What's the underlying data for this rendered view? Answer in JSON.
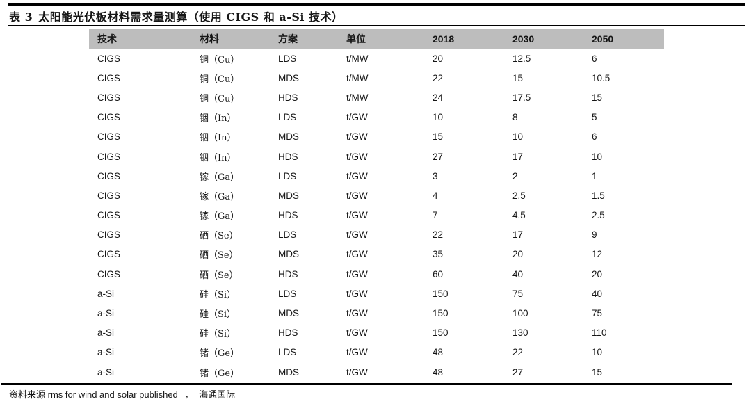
{
  "caption": {
    "label": "表 3",
    "text": "太阳能光伏板材料需求量测算（使用 CIGS 和 a-Si 技术）"
  },
  "table": {
    "columns": [
      "技术",
      "材料",
      "方案",
      "单位",
      "2018",
      "2030",
      "2050"
    ],
    "rows": [
      [
        "CIGS",
        "铜（Cu）",
        "LDS",
        "t/MW",
        "20",
        "12.5",
        "6"
      ],
      [
        "CIGS",
        "铜（Cu）",
        "MDS",
        "t/MW",
        "22",
        "15",
        "10.5"
      ],
      [
        "CIGS",
        "铜（Cu）",
        "HDS",
        "t/MW",
        "24",
        "17.5",
        "15"
      ],
      [
        "CIGS",
        "铟（In）",
        "LDS",
        "t/GW",
        "10",
        "8",
        "5"
      ],
      [
        "CIGS",
        "铟（In）",
        "MDS",
        "t/GW",
        "15",
        "10",
        "6"
      ],
      [
        "CIGS",
        "铟（In）",
        "HDS",
        "t/GW",
        "27",
        "17",
        "10"
      ],
      [
        "CIGS",
        "镓（Ga）",
        "LDS",
        "t/GW",
        "3",
        "2",
        "1"
      ],
      [
        "CIGS",
        "镓（Ga）",
        "MDS",
        "t/GW",
        "4",
        "2.5",
        "1.5"
      ],
      [
        "CIGS",
        "镓（Ga）",
        "HDS",
        "t/GW",
        "7",
        "4.5",
        "2.5"
      ],
      [
        "CIGS",
        "硒（Se）",
        "LDS",
        "t/GW",
        "22",
        "17",
        "9"
      ],
      [
        "CIGS",
        "硒（Se）",
        "MDS",
        "t/GW",
        "35",
        "20",
        "12"
      ],
      [
        "CIGS",
        "硒（Se）",
        "HDS",
        "t/GW",
        "60",
        "40",
        "20"
      ],
      [
        "a-Si",
        "硅（Si）",
        "LDS",
        "t/GW",
        "150",
        "75",
        "40"
      ],
      [
        "a-Si",
        "硅（Si）",
        "MDS",
        "t/GW",
        "150",
        "100",
        "75"
      ],
      [
        "a-Si",
        "硅（Si）",
        "HDS",
        "t/GW",
        "150",
        "130",
        "110"
      ],
      [
        "a-Si",
        "锗（Ge）",
        "LDS",
        "t/GW",
        "48",
        "22",
        "10"
      ],
      [
        "a-Si",
        "锗（Ge）",
        "MDS",
        "t/GW",
        "48",
        "27",
        "15"
      ]
    ]
  },
  "footer": {
    "source_label": "资料来源",
    "source_text": "rms for wind and solar published",
    "source_sep": "，",
    "source_org": "海通国际"
  },
  "colors": {
    "header_bg": "#bdbdbd",
    "rule": "#000000",
    "text": "#161616"
  }
}
